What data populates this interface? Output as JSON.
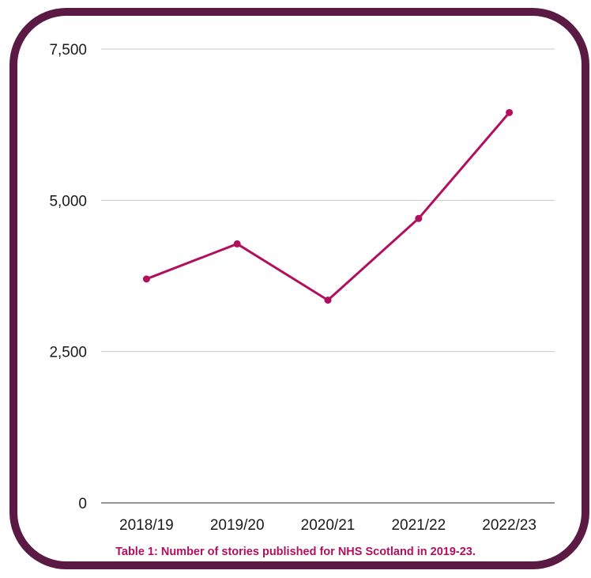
{
  "colors": {
    "frame": "#5a1a43",
    "line": "#b0105e",
    "grid": "#c9c9c9",
    "caption": "#b0105e"
  },
  "caption": "Table 1: Number of stories published for NHS Scotland in 2019-23.",
  "chart_data": {
    "type": "line",
    "categories": [
      "2018/19",
      "2019/20",
      "2020/21",
      "2021/22",
      "2022/23"
    ],
    "series": [
      {
        "values": [
          3700,
          4280,
          3350,
          4700,
          6450
        ]
      }
    ],
    "yticks": [
      0,
      2500,
      5000,
      7500
    ],
    "ytick_labels": [
      "0",
      "2,500",
      "5,000",
      "7,500"
    ],
    "ylim": [
      0,
      7500
    ],
    "grid": true,
    "legend": "none"
  }
}
